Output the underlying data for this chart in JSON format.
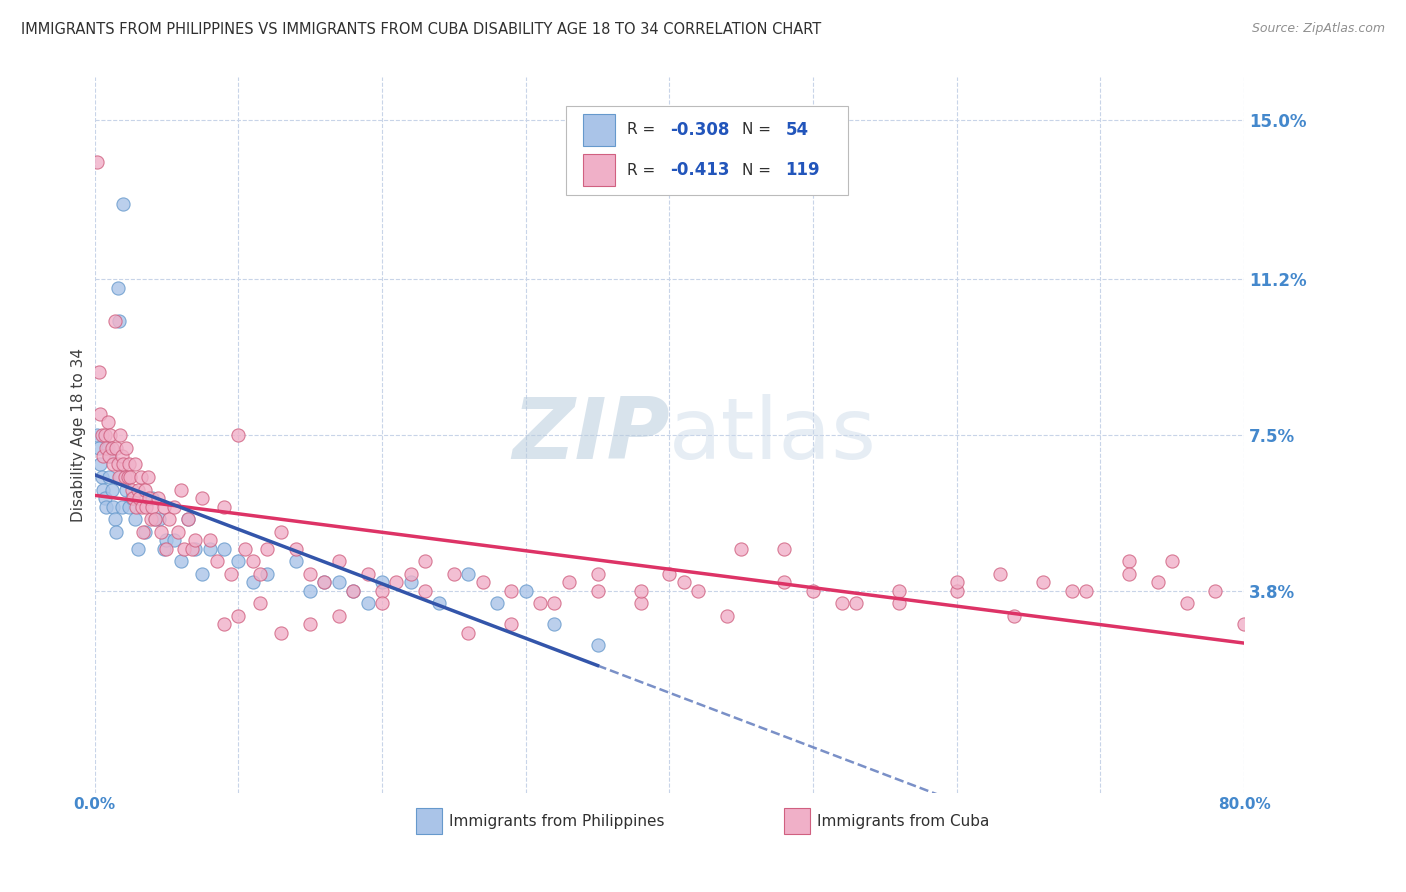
{
  "title": "IMMIGRANTS FROM PHILIPPINES VS IMMIGRANTS FROM CUBA DISABILITY AGE 18 TO 34 CORRELATION CHART",
  "source": "Source: ZipAtlas.com",
  "ylabel": "Disability Age 18 to 34",
  "yticks": [
    0.038,
    0.075,
    0.112,
    0.15
  ],
  "ytick_labels": [
    "3.8%",
    "7.5%",
    "11.2%",
    "15.0%"
  ],
  "xlim": [
    0.0,
    0.8
  ],
  "ylim": [
    -0.01,
    0.16
  ],
  "xtick_positions": [
    0.0,
    0.1,
    0.2,
    0.3,
    0.4,
    0.5,
    0.6,
    0.7,
    0.8
  ],
  "series": [
    {
      "name": "Immigrants from Philippines",
      "color": "#aac4e8",
      "edge_color": "#6699cc",
      "R": -0.308,
      "N": 54,
      "trend_color": "#3355aa",
      "x": [
        0.002,
        0.003,
        0.004,
        0.005,
        0.006,
        0.007,
        0.008,
        0.009,
        0.01,
        0.011,
        0.012,
        0.013,
        0.014,
        0.015,
        0.016,
        0.017,
        0.018,
        0.019,
        0.02,
        0.022,
        0.024,
        0.026,
        0.028,
        0.03,
        0.035,
        0.04,
        0.042,
        0.045,
        0.048,
        0.05,
        0.055,
        0.06,
        0.065,
        0.07,
        0.075,
        0.08,
        0.09,
        0.1,
        0.11,
        0.12,
        0.14,
        0.15,
        0.16,
        0.17,
        0.18,
        0.19,
        0.2,
        0.22,
        0.24,
        0.26,
        0.28,
        0.3,
        0.32,
        0.35
      ],
      "y": [
        0.075,
        0.072,
        0.068,
        0.065,
        0.062,
        0.06,
        0.058,
        0.072,
        0.065,
        0.07,
        0.062,
        0.058,
        0.055,
        0.052,
        0.11,
        0.102,
        0.065,
        0.058,
        0.13,
        0.062,
        0.058,
        0.06,
        0.055,
        0.048,
        0.052,
        0.06,
        0.055,
        0.055,
        0.048,
        0.05,
        0.05,
        0.045,
        0.055,
        0.048,
        0.042,
        0.048,
        0.048,
        0.045,
        0.04,
        0.042,
        0.045,
        0.038,
        0.04,
        0.04,
        0.038,
        0.035,
        0.04,
        0.04,
        0.035,
        0.042,
        0.035,
        0.038,
        0.03,
        0.025
      ]
    },
    {
      "name": "Immigrants from Cuba",
      "color": "#f0b0c8",
      "edge_color": "#d06080",
      "R": -0.413,
      "N": 119,
      "trend_color": "#dd3366",
      "x": [
        0.002,
        0.003,
        0.004,
        0.005,
        0.006,
        0.007,
        0.008,
        0.009,
        0.01,
        0.011,
        0.012,
        0.013,
        0.014,
        0.015,
        0.016,
        0.017,
        0.018,
        0.019,
        0.02,
        0.021,
        0.022,
        0.023,
        0.024,
        0.025,
        0.026,
        0.027,
        0.028,
        0.029,
        0.03,
        0.031,
        0.032,
        0.033,
        0.034,
        0.035,
        0.036,
        0.037,
        0.038,
        0.039,
        0.04,
        0.042,
        0.044,
        0.046,
        0.048,
        0.05,
        0.052,
        0.055,
        0.058,
        0.06,
        0.062,
        0.065,
        0.068,
        0.07,
        0.075,
        0.08,
        0.085,
        0.09,
        0.095,
        0.1,
        0.105,
        0.11,
        0.115,
        0.12,
        0.13,
        0.14,
        0.15,
        0.16,
        0.17,
        0.18,
        0.19,
        0.2,
        0.21,
        0.22,
        0.23,
        0.25,
        0.27,
        0.29,
        0.31,
        0.33,
        0.35,
        0.38,
        0.4,
        0.42,
        0.45,
        0.48,
        0.5,
        0.53,
        0.56,
        0.6,
        0.63,
        0.66,
        0.69,
        0.72,
        0.74,
        0.76,
        0.78,
        0.8,
        0.75,
        0.72,
        0.68,
        0.64,
        0.6,
        0.56,
        0.52,
        0.48,
        0.44,
        0.41,
        0.38,
        0.35,
        0.32,
        0.29,
        0.26,
        0.23,
        0.2,
        0.17,
        0.15,
        0.13,
        0.115,
        0.1,
        0.09
      ],
      "y": [
        0.14,
        0.09,
        0.08,
        0.075,
        0.07,
        0.075,
        0.072,
        0.078,
        0.07,
        0.075,
        0.072,
        0.068,
        0.102,
        0.072,
        0.068,
        0.065,
        0.075,
        0.07,
        0.068,
        0.065,
        0.072,
        0.065,
        0.068,
        0.065,
        0.062,
        0.06,
        0.068,
        0.058,
        0.062,
        0.06,
        0.065,
        0.058,
        0.052,
        0.062,
        0.058,
        0.065,
        0.06,
        0.055,
        0.058,
        0.055,
        0.06,
        0.052,
        0.058,
        0.048,
        0.055,
        0.058,
        0.052,
        0.062,
        0.048,
        0.055,
        0.048,
        0.05,
        0.06,
        0.05,
        0.045,
        0.058,
        0.042,
        0.075,
        0.048,
        0.045,
        0.042,
        0.048,
        0.052,
        0.048,
        0.042,
        0.04,
        0.045,
        0.038,
        0.042,
        0.038,
        0.04,
        0.042,
        0.045,
        0.042,
        0.04,
        0.038,
        0.035,
        0.04,
        0.038,
        0.035,
        0.042,
        0.038,
        0.048,
        0.04,
        0.038,
        0.035,
        0.035,
        0.038,
        0.042,
        0.04,
        0.038,
        0.045,
        0.04,
        0.035,
        0.038,
        0.03,
        0.045,
        0.042,
        0.038,
        0.032,
        0.04,
        0.038,
        0.035,
        0.048,
        0.032,
        0.04,
        0.038,
        0.042,
        0.035,
        0.03,
        0.028,
        0.038,
        0.035,
        0.032,
        0.03,
        0.028,
        0.035,
        0.032,
        0.03
      ]
    }
  ],
  "watermark_zip": "ZIP",
  "watermark_atlas": "atlas",
  "background_color": "#ffffff",
  "grid_color": "#c8d4e8",
  "title_fontsize": 10.5,
  "tick_label_color": "#4488cc",
  "title_color": "#303030",
  "legend_text_color": "#303030",
  "legend_value_color": "#2255bb"
}
